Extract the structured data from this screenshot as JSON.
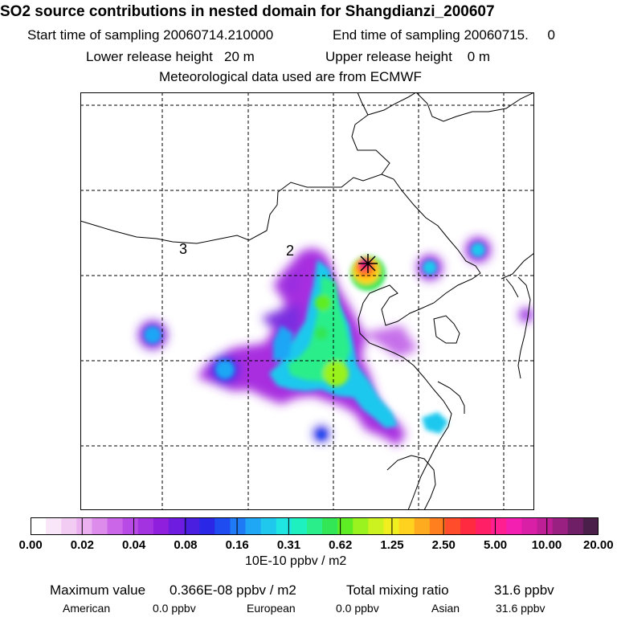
{
  "title": "SO2 source contributions in nested domain for Shangdianzi_200607",
  "start_label": "Start time of sampling 20060714.210000",
  "end_label": "End time of sampling 20060715.     0",
  "lower_label": "Lower release height   20 m",
  "upper_label": "Upper release height    0 m",
  "met_label": "Meteorological data used are from ECMWF",
  "map": {
    "region_labels": [
      "3",
      "2"
    ],
    "station_marker": "star-icon"
  },
  "chart_data": {
    "type": "heatmap",
    "title": "SO2 source contributions in nested domain for Shangdianzi_200607",
    "units": "10E-10 ppbv / m2",
    "levels": [
      "0.00",
      "0.02",
      "0.04",
      "0.08",
      "0.16",
      "0.31",
      "0.62",
      "1.25",
      "2.50",
      "5.00",
      "10.00",
      "20.00"
    ],
    "colors": [
      "#ffffff",
      "#f9e6f9",
      "#f3ccf3",
      "#eab0f0",
      "#dd8ceb",
      "#cc66e8",
      "#b84be5",
      "#a333e0",
      "#8f1fdc",
      "#6e1de0",
      "#4a1fe0",
      "#2a28e6",
      "#1f4cf0",
      "#1f7af5",
      "#1fa6f5",
      "#20c8ee",
      "#1fe6e1",
      "#1ff0c0",
      "#2aee8a",
      "#33e655",
      "#5eed24",
      "#9af21f",
      "#ccf21f",
      "#f0ee1f",
      "#ffd21f",
      "#ffab1f",
      "#ff7f1f",
      "#ff4c2a",
      "#ff2a3f",
      "#ff1f66",
      "#ff1f91",
      "#f21fb0",
      "#d91fa6",
      "#bf1f96",
      "#991f80",
      "#6e1f66",
      "#4a1f4a"
    ],
    "maximum_label": "Maximum value",
    "maximum_value": "0.366E-08 ppbv / m2",
    "total_label": "Total mixing ratio",
    "total_value": "31.6 ppbv",
    "contributions": [
      {
        "name": "American",
        "value": "0.0 ppbv"
      },
      {
        "name": "European",
        "value": "0.0 ppbv"
      },
      {
        "name": "Asian",
        "value": "31.6 ppbv"
      }
    ]
  }
}
